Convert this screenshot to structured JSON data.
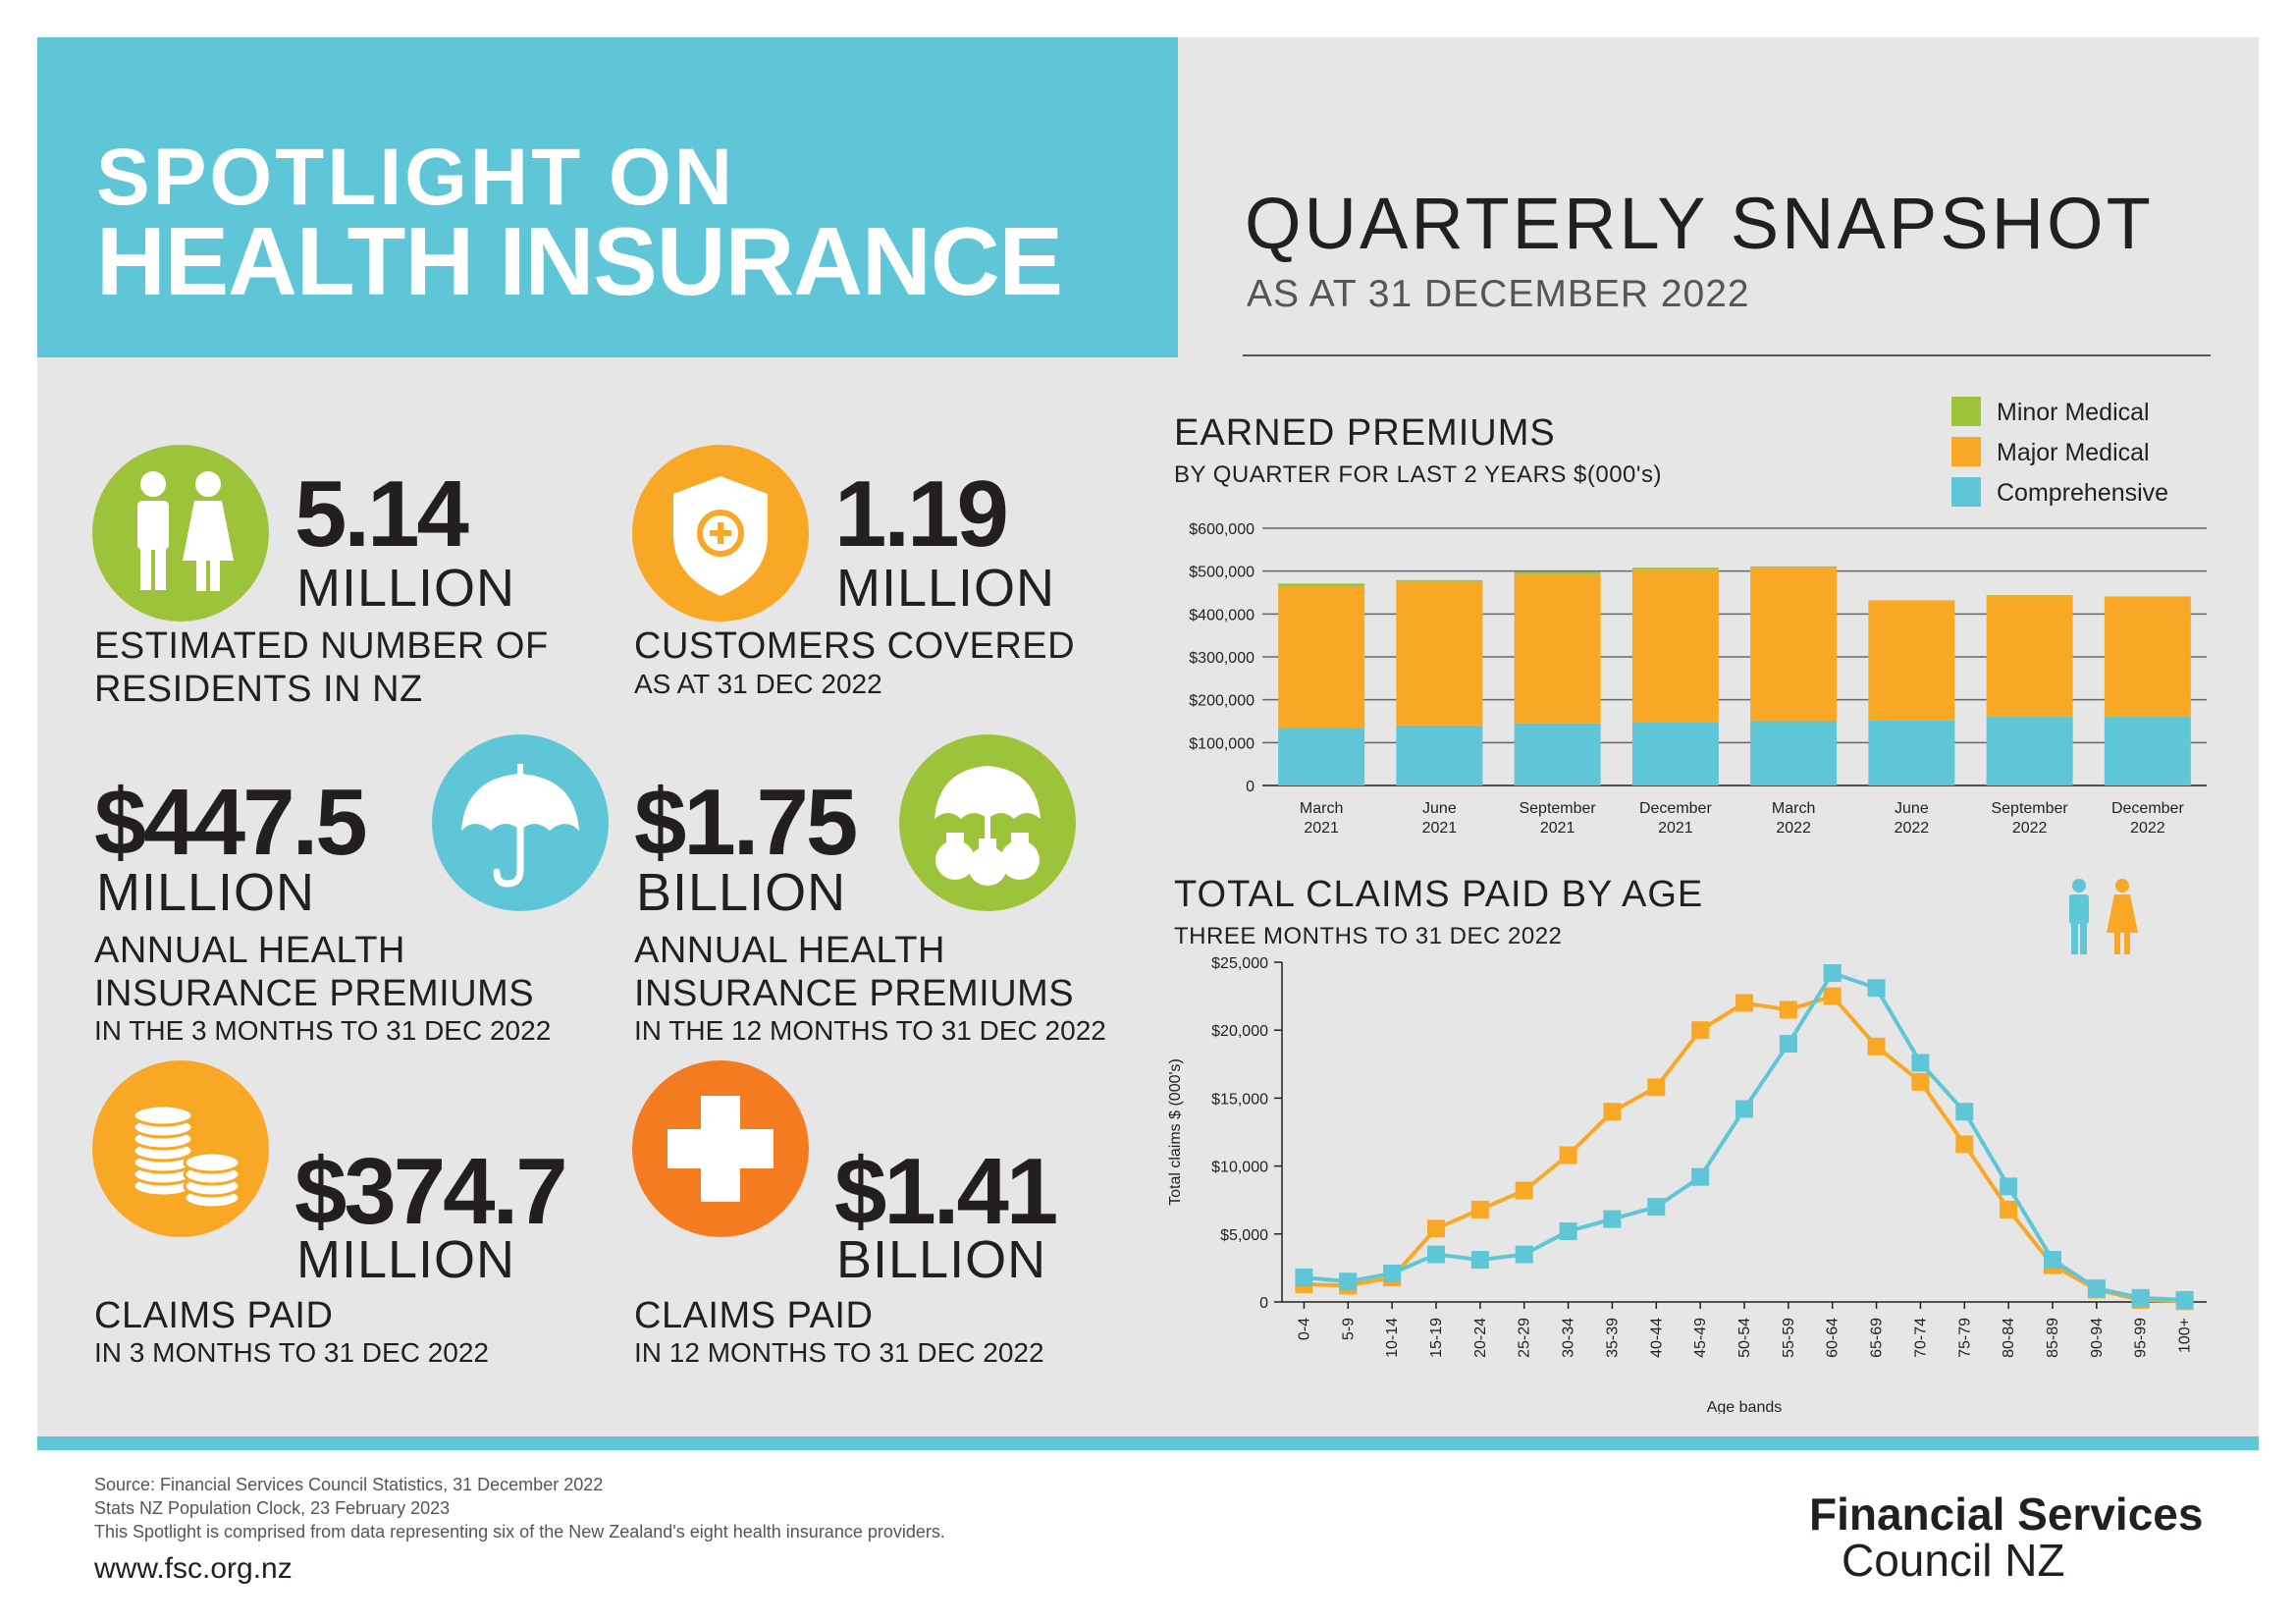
{
  "header": {
    "line1": "SPOTLIGHT ON",
    "line2": "HEALTH INSURANCE",
    "snapshot_title": "QUARTERLY SNAPSHOT",
    "snapshot_date": "AS AT 31 DECEMBER 2022"
  },
  "stats": [
    {
      "value": "5.14",
      "unit": "MILLION",
      "desc1": "ESTIMATED NUMBER OF",
      "desc2": "RESIDENTS IN NZ",
      "color": "#9dc33b",
      "icon": "people-icon"
    },
    {
      "value": "1.19",
      "unit": "MILLION",
      "desc1": "CUSTOMERS COVERED",
      "desc2": "AS AT 31 DEC 2022",
      "color": "#f9a825",
      "icon": "shield-icon"
    },
    {
      "value": "$447.5",
      "unit": "MILLION",
      "desc1": "ANNUAL HEALTH",
      "desc2": "INSURANCE PREMIUMS",
      "desc3": "IN THE 3 MONTHS TO 31 DEC 2022",
      "color": "#5ec6d6",
      "icon": "umbrella-icon"
    },
    {
      "value": "$1.75",
      "unit": "BILLION",
      "desc1": "ANNUAL HEALTH",
      "desc2": "INSURANCE PREMIUMS",
      "desc3": "IN THE 12 MONTHS TO 31 DEC 2022",
      "color": "#9dc33b",
      "icon": "umbrella-money-bags-icon"
    },
    {
      "value": "$374.7",
      "unit": "MILLION",
      "desc1": "CLAIMS PAID",
      "desc2": "IN 3 MONTHS TO 31 DEC 2022",
      "color": "#f9a825",
      "icon": "coins-icon"
    },
    {
      "value": "$1.41",
      "unit": "BILLION",
      "desc1": "CLAIMS PAID",
      "desc2": "IN 12 MONTHS TO 31 DEC 2022",
      "color": "#f47b20",
      "icon": "medical-cross-icon"
    }
  ],
  "colors": {
    "teal": "#5ec6d6",
    "orange": "#f9a825",
    "green": "#9dc33b",
    "dark_orange": "#f47b20"
  },
  "chart_data": [
    {
      "type": "bar",
      "stacked": true,
      "title": "EARNED PREMIUMS",
      "subtitle": "BY QUARTER FOR LAST 2 YEARS $(000's)",
      "categories": [
        [
          "March",
          "2021"
        ],
        [
          "June",
          "2021"
        ],
        [
          "September",
          "2021"
        ],
        [
          "December",
          "2021"
        ],
        [
          "March",
          "2022"
        ],
        [
          "June",
          "2022"
        ],
        [
          "September",
          "2022"
        ],
        [
          "December",
          "2022"
        ]
      ],
      "series": [
        {
          "name": "Comprehensive",
          "color": "#5ec6d6",
          "values": [
            135000,
            140000,
            145000,
            148000,
            150000,
            153000,
            160000,
            160000
          ]
        },
        {
          "name": "Major Medical",
          "color": "#f9a825",
          "values": [
            330000,
            335000,
            348000,
            355000,
            358000,
            278000,
            283000,
            280000
          ]
        },
        {
          "name": "Minor Medical",
          "color": "#9dc33b",
          "values": [
            6000,
            4000,
            5000,
            5000,
            3000,
            1000,
            1000,
            1000
          ]
        }
      ],
      "yticks": [
        "0",
        "$100,000",
        "$200,000",
        "$300,000",
        "$400,000",
        "$500,000",
        "$600,000"
      ],
      "ylim": [
        0,
        600000
      ],
      "grid": true,
      "legend": "top-right"
    },
    {
      "type": "line",
      "title": "TOTAL CLAIMS PAID BY AGE",
      "subtitle": "THREE MONTHS TO 31 DEC 2022",
      "xlabel": "Age bands",
      "ylabel": "Total claims $ (000's)",
      "x": [
        "0-4",
        "5-9",
        "10-14",
        "15-19",
        "20-24",
        "25-29",
        "30-34",
        "35-39",
        "40-44",
        "45-49",
        "50-54",
        "55-59",
        "60-64",
        "65-69",
        "70-74",
        "75-79",
        "80-84",
        "85-89",
        "90-94",
        "95-99",
        "100+"
      ],
      "series": [
        {
          "color": "#f9a825",
          "values": [
            1300,
            1200,
            1800,
            5400,
            6800,
            8200,
            10800,
            14000,
            15800,
            20000,
            22000,
            21500,
            22500,
            18800,
            16200,
            11600,
            6800,
            2700,
            900,
            150,
            50
          ]
        },
        {
          "color": "#5ec6d6",
          "values": [
            1800,
            1500,
            2100,
            3500,
            3100,
            3500,
            5200,
            6100,
            7000,
            9200,
            14200,
            19000,
            24200,
            23100,
            17600,
            14000,
            8500,
            3100,
            1000,
            300,
            150
          ]
        }
      ],
      "yticks": [
        "0",
        "$5,000",
        "$10,000",
        "$15,000",
        "$20,000",
        "$25,000"
      ],
      "ylim": [
        0,
        25000
      ],
      "legend": "top-right"
    }
  ],
  "footer": {
    "source1": "Source: Financial Services Council Statistics, 31 December 2022",
    "source2": "Stats NZ Population Clock, 23 February 2023",
    "source3": "This Spotlight is comprised from data representing six of the New Zealand's eight health insurance providers.",
    "url": "www.fsc.org.nz",
    "logo_line1": "Financial Services",
    "logo_line2": "Council NZ"
  }
}
